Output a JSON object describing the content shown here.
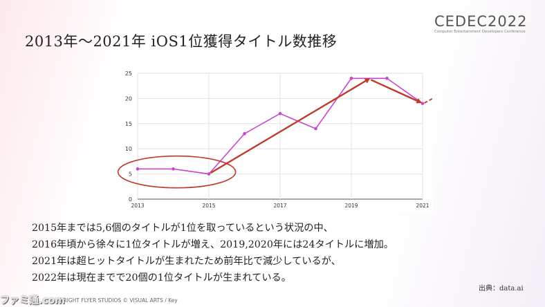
{
  "slide": {
    "title": "2013年〜2021年 iOS1位獲得タイトル数推移",
    "logo_main": "CEDEC2022",
    "logo_sub": "Computer Entertainment Developers Conference",
    "notes": [
      "2015年までは5,6個のタイトルが1位を取っているという状況の中、",
      "2016年頃から徐々に1位タイトルが増え、2019,2020年には24タイトルに増加。",
      "2021年は超ヒットタイトルが生まれたため前年比で減少しているが、",
      "2022年は現在までで20個の1位タイトルが生まれている。"
    ],
    "source": "出典：data.ai",
    "copyright": "WRIGHT FLYER STUDIOS © VISUAL ARTS / Key",
    "watermark": "ファミ通.com"
  },
  "chart_data": {
    "type": "line",
    "x": [
      2013,
      2014,
      2015,
      2016,
      2017,
      2018,
      2019,
      2020,
      2021
    ],
    "series": [
      {
        "values": [
          6,
          6,
          5,
          13,
          17,
          14,
          24,
          24,
          19
        ],
        "color": "#cc44cc"
      }
    ],
    "xticks": [
      "2013",
      "2015",
      "2017",
      "2019",
      "2021"
    ],
    "yticks": [
      "0",
      "5",
      "10",
      "15",
      "20",
      "25"
    ],
    "xlim": [
      2013,
      2021
    ],
    "ylim": [
      0,
      25
    ],
    "grid": true,
    "title": "",
    "xlabel": "",
    "ylabel": "",
    "annotations": {
      "ellipse_color": "#c0392b",
      "arrow_color": "#c0392b",
      "projection_value_2022": 23.5
    }
  }
}
